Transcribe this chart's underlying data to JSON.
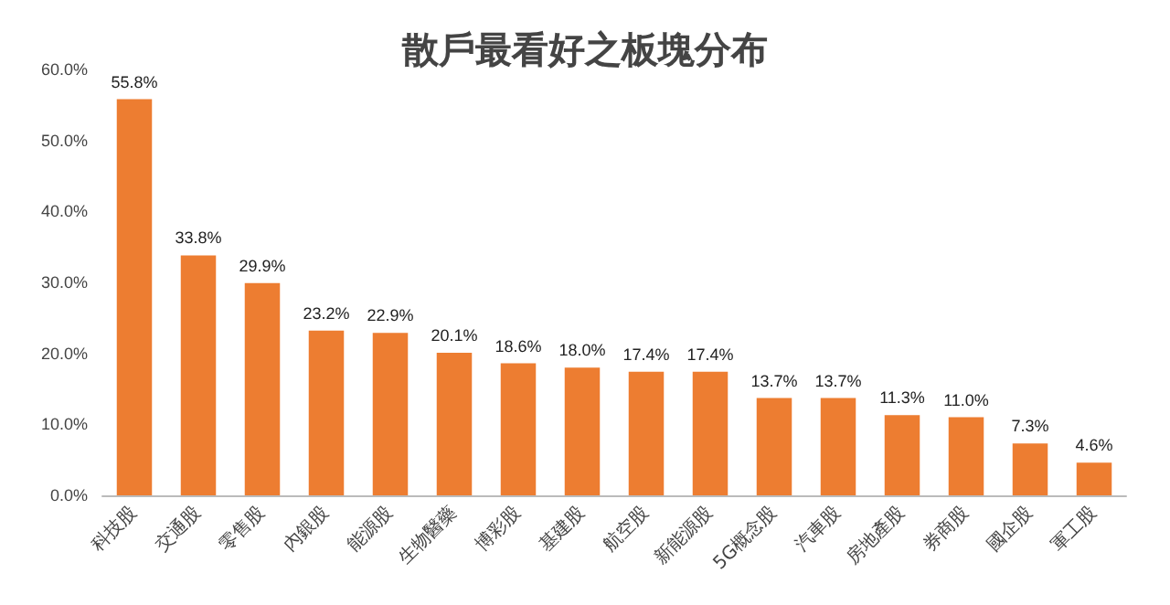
{
  "chart_data": {
    "type": "bar",
    "title": "散戶最看好之板塊分布",
    "categories": [
      "科技股",
      "交通股",
      "零售股",
      "內銀股",
      "能源股",
      "生物醫藥",
      "博彩股",
      "基建股",
      "航空股",
      "新能源股",
      "5G概念股",
      "汽車股",
      "房地產股",
      "券商股",
      "國企股",
      "軍工股"
    ],
    "values": [
      55.8,
      33.8,
      29.9,
      23.2,
      22.9,
      20.1,
      18.6,
      18.0,
      17.4,
      17.4,
      13.7,
      13.7,
      11.3,
      11.0,
      7.3,
      4.6
    ],
    "value_labels": [
      "55.8%",
      "33.8%",
      "29.9%",
      "23.2%",
      "22.9%",
      "20.1%",
      "18.6%",
      "18.0%",
      "17.4%",
      "17.4%",
      "13.7%",
      "13.7%",
      "11.3%",
      "11.0%",
      "7.3%",
      "4.6%"
    ],
    "color": "#ed7d31",
    "ylim": [
      0,
      60
    ],
    "yticks": [
      {
        "value": 0,
        "label": "0.0%"
      },
      {
        "value": 10,
        "label": "10.0%"
      },
      {
        "value": 20,
        "label": "20.0%"
      },
      {
        "value": 30,
        "label": "30.0%"
      },
      {
        "value": 40,
        "label": "40.0%"
      },
      {
        "value": 50,
        "label": "50.0%"
      },
      {
        "value": 60,
        "label": "60.0%"
      }
    ]
  }
}
